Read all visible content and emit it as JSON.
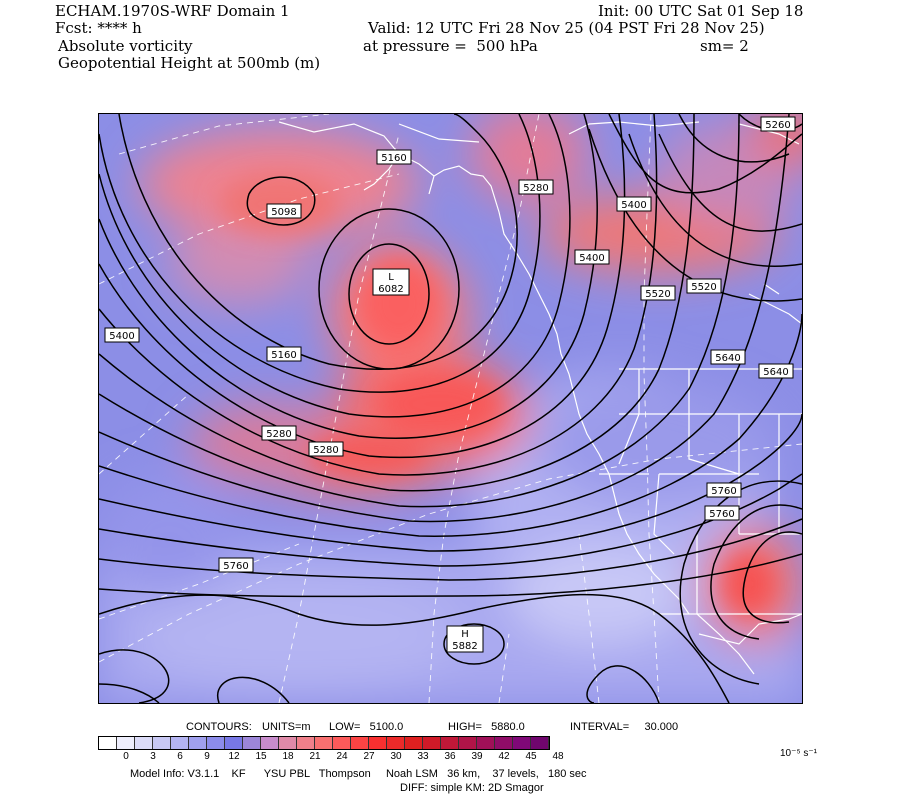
{
  "header": {
    "model_title": "ECHAM.1970S-WRF Domain 1",
    "init": "Init: 00 UTC Sat 01 Sep 18",
    "fcst": "Fcst: **** h",
    "valid": "Valid: 12 UTC Fri 28 Nov 25 (04 PST Fri 28 Nov 25)",
    "field1": "Absolute vorticity",
    "pressure": "at pressure =  500 hPa",
    "smoothing": "sm= 2",
    "field2": "Geopotential Height at 500mb (m)"
  },
  "contour_info": {
    "contours_label": "CONTOURS:",
    "units": "UNITS=m",
    "low": "LOW=   5100.0",
    "high": "HIGH=   5880.0",
    "interval": "INTERVAL=     30.000"
  },
  "colorbar": {
    "ticks": [
      "0",
      "3",
      "6",
      "9",
      "12",
      "15",
      "18",
      "21",
      "24",
      "27",
      "30",
      "33",
      "36",
      "39",
      "42",
      "45",
      "48"
    ],
    "units": "10⁻⁵ s⁻¹",
    "colors": [
      "#ffffff",
      "#eeeefc",
      "#dcdcf8",
      "#c8c8f4",
      "#b4b4f2",
      "#a0a0ee",
      "#8c8cea",
      "#7878e6",
      "#9c86d8",
      "#c88ccc",
      "#e08aa8",
      "#f0808a",
      "#f87070",
      "#fc5a5a",
      "#fc4444",
      "#f83030",
      "#ec2a2a",
      "#de2020",
      "#d01a28",
      "#c01838",
      "#b01448",
      "#a01058",
      "#900c68",
      "#800878",
      "#70066e"
    ]
  },
  "labels": [
    {
      "text": "5160"
    },
    {
      "text": "5098"
    },
    {
      "text": "5280"
    },
    {
      "text": "5260"
    },
    {
      "text": "5400"
    },
    {
      "text": "5400"
    },
    {
      "text": "5520"
    },
    {
      "text": "5520"
    },
    {
      "text": "5400"
    },
    {
      "text": "5160"
    },
    {
      "text": "5640"
    },
    {
      "text": "5640"
    },
    {
      "text": "5280"
    },
    {
      "text": "5280"
    },
    {
      "text": "5760"
    },
    {
      "text": "5760"
    },
    {
      "text": "5760"
    }
  ],
  "low_center": {
    "symbol": "L",
    "value": "6082"
  },
  "high_center": {
    "symbol": "H",
    "value": "5882"
  },
  "model_info": "Model Info: V3.1.1    KF      YSU PBL   Thompson     Noah LSM   36 km,    37 levels,   180 sec",
  "diff_info": "DIFF: simple KM: 2D Smagor"
}
